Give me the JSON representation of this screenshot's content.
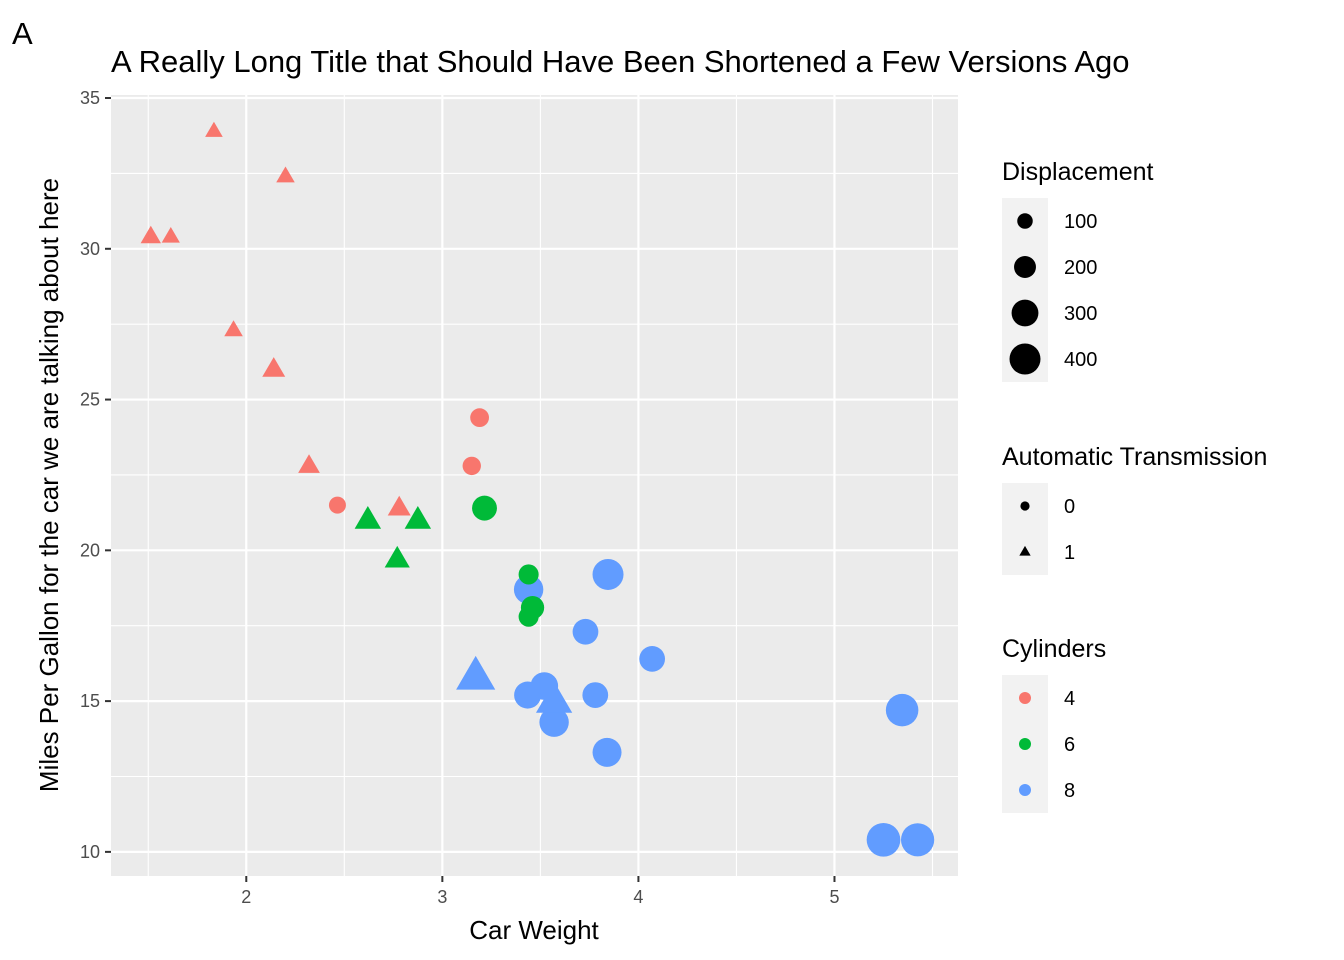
{
  "tag": "A",
  "chart_data": {
    "type": "scatter",
    "title": "A Really Long Title that Should Have Been Shortened a Few Versions Ago",
    "xlabel": "Car Weight",
    "ylabel": "Miles Per Gallon for the car we are talking about here",
    "xlim": [
      1.31,
      5.63
    ],
    "ylim": [
      9.2,
      35.1
    ],
    "xticks": [
      2,
      3,
      4,
      5
    ],
    "yticks": [
      10,
      15,
      20,
      25,
      30,
      35
    ],
    "grid": true,
    "legend_position": "right",
    "colors": {
      "4": "#F8766D",
      "6": "#00BA38",
      "8": "#619CFF"
    },
    "legends": [
      {
        "title": "Displacement",
        "kind": "size",
        "entries": [
          {
            "label": "100",
            "value": 100
          },
          {
            "label": "200",
            "value": 200
          },
          {
            "label": "300",
            "value": 300
          },
          {
            "label": "400",
            "value": 400
          }
        ]
      },
      {
        "title": "Automatic Transmission",
        "kind": "shape",
        "entries": [
          {
            "label": "0",
            "shape": "circle"
          },
          {
            "label": "1",
            "shape": "triangle"
          }
        ]
      },
      {
        "title": "Cylinders",
        "kind": "color",
        "entries": [
          {
            "label": "4",
            "color": "#F8766D"
          },
          {
            "label": "6",
            "color": "#00BA38"
          },
          {
            "label": "8",
            "color": "#619CFF"
          }
        ]
      }
    ],
    "points": [
      {
        "x": 2.62,
        "y": 21.0,
        "cyl": 6,
        "am": 1,
        "disp": 160
      },
      {
        "x": 2.875,
        "y": 21.0,
        "cyl": 6,
        "am": 1,
        "disp": 160
      },
      {
        "x": 2.32,
        "y": 22.8,
        "cyl": 4,
        "am": 1,
        "disp": 108
      },
      {
        "x": 3.215,
        "y": 21.4,
        "cyl": 6,
        "am": 0,
        "disp": 258
      },
      {
        "x": 3.44,
        "y": 18.7,
        "cyl": 8,
        "am": 0,
        "disp": 360
      },
      {
        "x": 3.46,
        "y": 18.1,
        "cyl": 6,
        "am": 0,
        "disp": 225
      },
      {
        "x": 3.57,
        "y": 14.3,
        "cyl": 8,
        "am": 0,
        "disp": 360
      },
      {
        "x": 3.19,
        "y": 24.4,
        "cyl": 4,
        "am": 0,
        "disp": 146.7
      },
      {
        "x": 3.15,
        "y": 22.8,
        "cyl": 4,
        "am": 0,
        "disp": 140.8
      },
      {
        "x": 3.44,
        "y": 19.2,
        "cyl": 6,
        "am": 0,
        "disp": 167.6
      },
      {
        "x": 3.44,
        "y": 17.8,
        "cyl": 6,
        "am": 0,
        "disp": 167.6
      },
      {
        "x": 4.07,
        "y": 16.4,
        "cyl": 8,
        "am": 0,
        "disp": 275.8
      },
      {
        "x": 3.73,
        "y": 17.3,
        "cyl": 8,
        "am": 0,
        "disp": 275.8
      },
      {
        "x": 3.78,
        "y": 15.2,
        "cyl": 8,
        "am": 0,
        "disp": 275.8
      },
      {
        "x": 5.25,
        "y": 10.4,
        "cyl": 8,
        "am": 0,
        "disp": 472
      },
      {
        "x": 5.424,
        "y": 10.4,
        "cyl": 8,
        "am": 0,
        "disp": 460
      },
      {
        "x": 5.345,
        "y": 14.7,
        "cyl": 8,
        "am": 0,
        "disp": 440
      },
      {
        "x": 2.2,
        "y": 32.4,
        "cyl": 4,
        "am": 1,
        "disp": 78.7
      },
      {
        "x": 1.615,
        "y": 30.4,
        "cyl": 4,
        "am": 1,
        "disp": 75.7
      },
      {
        "x": 1.835,
        "y": 33.9,
        "cyl": 4,
        "am": 1,
        "disp": 71.1
      },
      {
        "x": 2.465,
        "y": 21.5,
        "cyl": 4,
        "am": 0,
        "disp": 120.1
      },
      {
        "x": 3.52,
        "y": 15.5,
        "cyl": 8,
        "am": 0,
        "disp": 318
      },
      {
        "x": 3.435,
        "y": 15.2,
        "cyl": 8,
        "am": 0,
        "disp": 304
      },
      {
        "x": 3.84,
        "y": 13.3,
        "cyl": 8,
        "am": 0,
        "disp": 350
      },
      {
        "x": 3.845,
        "y": 19.2,
        "cyl": 8,
        "am": 0,
        "disp": 400
      },
      {
        "x": 1.935,
        "y": 27.3,
        "cyl": 4,
        "am": 1,
        "disp": 79
      },
      {
        "x": 2.14,
        "y": 26.0,
        "cyl": 4,
        "am": 1,
        "disp": 120.3
      },
      {
        "x": 1.513,
        "y": 30.4,
        "cyl": 4,
        "am": 1,
        "disp": 95.1
      },
      {
        "x": 3.17,
        "y": 15.8,
        "cyl": 8,
        "am": 1,
        "disp": 351
      },
      {
        "x": 2.77,
        "y": 19.7,
        "cyl": 6,
        "am": 1,
        "disp": 145
      },
      {
        "x": 3.57,
        "y": 15.0,
        "cyl": 8,
        "am": 1,
        "disp": 301
      },
      {
        "x": 2.78,
        "y": 21.4,
        "cyl": 4,
        "am": 1,
        "disp": 121
      }
    ]
  }
}
